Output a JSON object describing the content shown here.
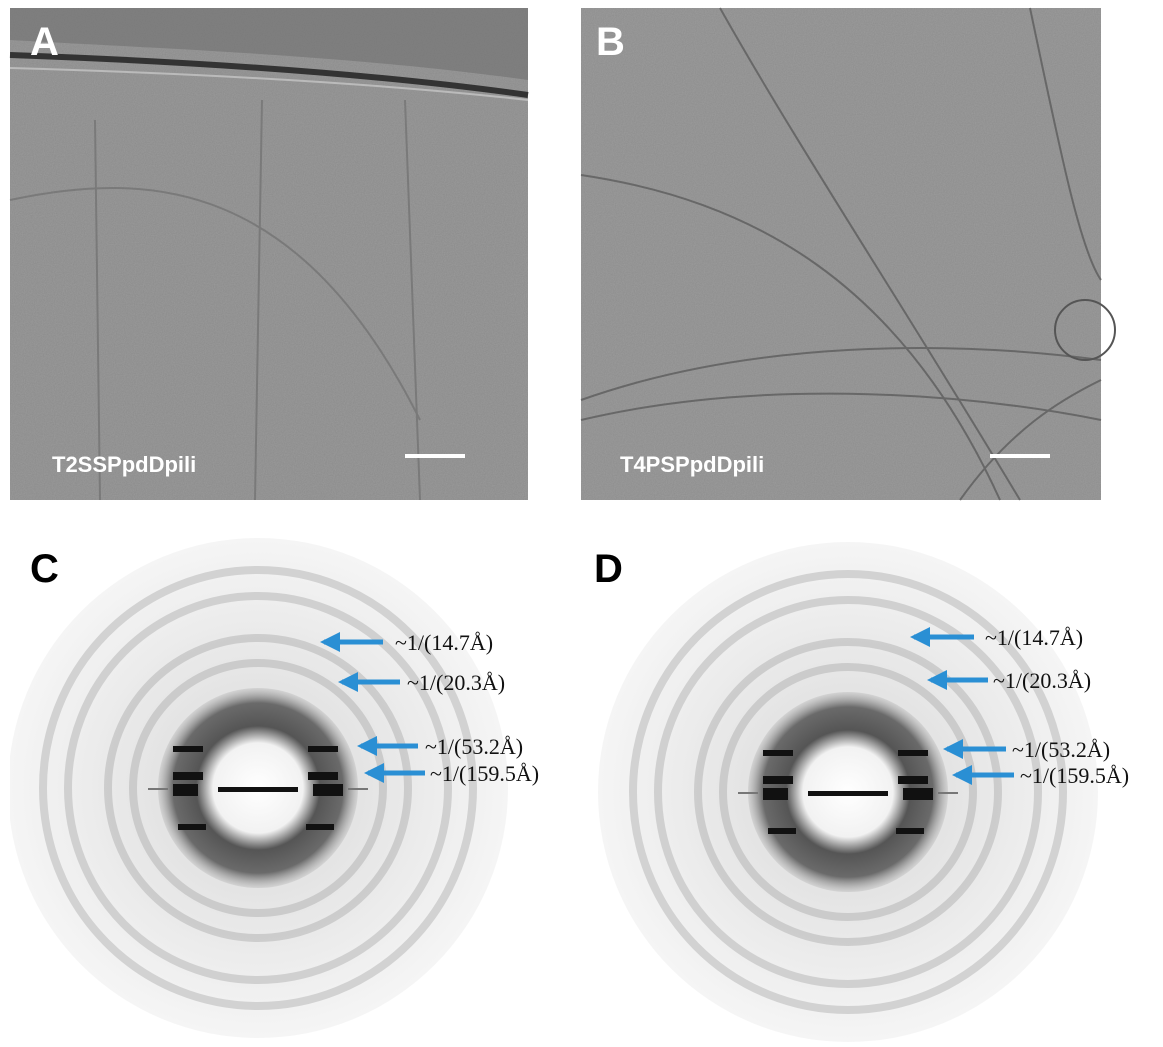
{
  "panels": [
    {
      "label": "A",
      "caption": "T2SSPpdDpili"
    },
    {
      "label": "B",
      "caption": "T4PSPpdDpili"
    },
    {
      "label": "C",
      "annotations": [
        "~1/(14.7Å)",
        "~1/(20.3Å)",
        "~1/(53.2Å)",
        "~1/(159.5Å)"
      ]
    },
    {
      "label": "D",
      "annotations": [
        "~1/(14.7Å)",
        "~1/(20.3Å)",
        "~1/(53.2Å)",
        "~1/(159.5Å)"
      ]
    }
  ]
}
